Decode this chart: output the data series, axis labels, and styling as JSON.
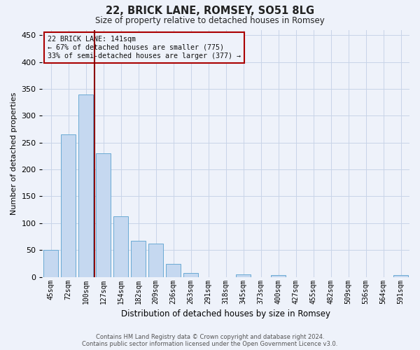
{
  "title_line1": "22, BRICK LANE, ROMSEY, SO51 8LG",
  "title_line2": "Size of property relative to detached houses in Romsey",
  "xlabel": "Distribution of detached houses by size in Romsey",
  "ylabel": "Number of detached properties",
  "categories": [
    "45sqm",
    "72sqm",
    "100sqm",
    "127sqm",
    "154sqm",
    "182sqm",
    "209sqm",
    "236sqm",
    "263sqm",
    "291sqm",
    "318sqm",
    "345sqm",
    "373sqm",
    "400sqm",
    "427sqm",
    "455sqm",
    "482sqm",
    "509sqm",
    "536sqm",
    "564sqm",
    "591sqm"
  ],
  "values": [
    50,
    265,
    340,
    230,
    113,
    67,
    62,
    24,
    7,
    0,
    0,
    5,
    0,
    4,
    0,
    0,
    0,
    0,
    0,
    0,
    4
  ],
  "bar_color": "#c5d8f0",
  "bar_edge_color": "#6aaad4",
  "grid_color": "#c8d4e8",
  "background_color": "#eef2fa",
  "marker_bin_index": 2.5,
  "annotation_text_line1": "22 BRICK LANE: 141sqm",
  "annotation_text_line2": "← 67% of detached houses are smaller (775)",
  "annotation_text_line3": "33% of semi-detached houses are larger (377) →",
  "ylim": [
    0,
    460
  ],
  "yticks": [
    0,
    50,
    100,
    150,
    200,
    250,
    300,
    350,
    400,
    450
  ],
  "footer_line1": "Contains HM Land Registry data © Crown copyright and database right 2024.",
  "footer_line2": "Contains public sector information licensed under the Open Government Licence v3.0."
}
